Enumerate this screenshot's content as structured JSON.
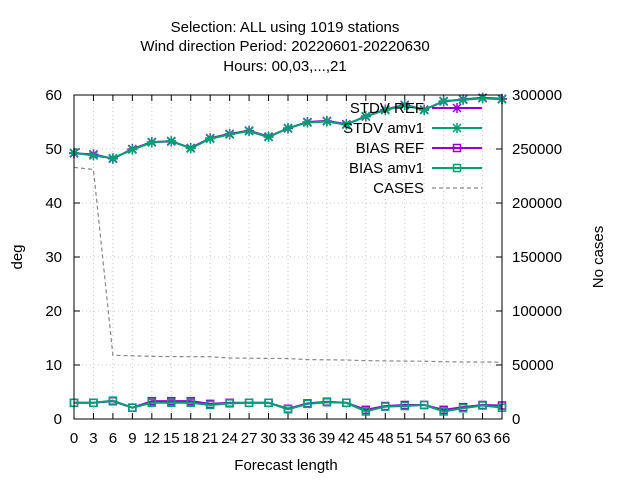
{
  "chart_data": {
    "type": "line",
    "title": [
      "Selection: ALL using  1019 stations",
      "Wind direction   Period: 20220601-20220630",
      "Hours:  00,03,...,21"
    ],
    "xlabel": "Forecast length",
    "ylabel": "deg",
    "y2label": "No cases",
    "x": [
      0,
      3,
      6,
      9,
      12,
      15,
      18,
      21,
      24,
      27,
      30,
      33,
      36,
      39,
      42,
      45,
      48,
      51,
      54,
      57,
      60,
      63,
      66
    ],
    "x_tick_labels": [
      "0",
      "3",
      "6",
      "9",
      "12",
      "15",
      "18",
      "21",
      "24",
      "27",
      "30",
      "33",
      "36",
      "39",
      "42",
      "45",
      "48",
      "51",
      "54",
      "57",
      "60",
      "63",
      "66"
    ],
    "xlim": [
      0,
      66
    ],
    "ylim": [
      0,
      60
    ],
    "y_ticks": [
      "0",
      "10",
      "20",
      "30",
      "40",
      "50",
      "60"
    ],
    "y2lim": [
      0,
      300000
    ],
    "y2_ticks": [
      "0",
      "50000",
      "100000",
      "150000",
      "200000",
      "250000",
      "300000"
    ],
    "legend_position": "top-right",
    "series": [
      {
        "name": "STDV REF",
        "axis": "y",
        "color": "#9400d3",
        "marker": "star",
        "values": [
          49.2,
          49.0,
          48.2,
          50.0,
          51.3,
          51.4,
          50.2,
          52.0,
          52.8,
          53.4,
          52.3,
          53.8,
          55.0,
          55.2,
          54.6,
          56.0,
          57.3,
          58.2,
          57.3,
          58.8,
          59.2,
          59.5,
          59.3
        ]
      },
      {
        "name": "STDV amv1",
        "axis": "y",
        "color": "#009e73",
        "marker": "star",
        "values": [
          49.3,
          48.8,
          48.3,
          49.9,
          51.2,
          51.5,
          50.1,
          51.9,
          52.7,
          53.3,
          52.2,
          53.9,
          54.9,
          55.1,
          54.5,
          56.1,
          57.2,
          58.1,
          57.2,
          58.9,
          59.1,
          59.4,
          59.2
        ]
      },
      {
        "name": "BIAS REF",
        "axis": "y",
        "color": "#9400d3",
        "marker": "square",
        "values": [
          3.0,
          3.0,
          3.3,
          2.1,
          3.3,
          3.3,
          3.3,
          2.8,
          3.0,
          3.0,
          3.0,
          1.9,
          2.9,
          3.2,
          3.0,
          1.7,
          2.4,
          2.6,
          2.6,
          1.7,
          2.2,
          2.6,
          2.5
        ]
      },
      {
        "name": "BIAS amv1",
        "axis": "y",
        "color": "#009e73",
        "marker": "square",
        "values": [
          3.0,
          3.0,
          3.4,
          2.1,
          3.0,
          3.0,
          3.0,
          2.6,
          2.9,
          3.0,
          3.0,
          1.8,
          2.8,
          3.1,
          3.0,
          1.4,
          2.3,
          2.4,
          2.6,
          1.4,
          2.0,
          2.5,
          2.1
        ]
      },
      {
        "name": "CASES",
        "axis": "y2",
        "color": "#888888",
        "marker": "none",
        "dashed": true,
        "values": [
          233000,
          231000,
          59000,
          58500,
          58000,
          57800,
          57700,
          57600,
          56500,
          56300,
          56100,
          56000,
          55000,
          54800,
          54600,
          54000,
          53800,
          53600,
          53500,
          53000,
          52800,
          52700,
          52600
        ]
      }
    ]
  }
}
